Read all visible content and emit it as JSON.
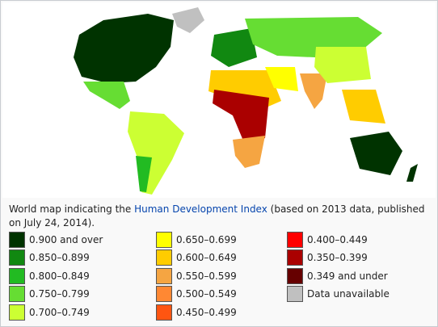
{
  "caption": {
    "before": "World map indicating the ",
    "link": "Human Development Index",
    "after": " (based on 2013 data, published on July 24, 2014)."
  },
  "legend": [
    {
      "label": "0.900 and over",
      "color": "#003300"
    },
    {
      "label": "0.850–0.899",
      "color": "#118811"
    },
    {
      "label": "0.800–0.849",
      "color": "#22bb22"
    },
    {
      "label": "0.750–0.799",
      "color": "#66dd33"
    },
    {
      "label": "0.700–0.749",
      "color": "#ccff33"
    },
    {
      "label": "0.650–0.699",
      "color": "#ffff00"
    },
    {
      "label": "0.600–0.649",
      "color": "#ffcc00"
    },
    {
      "label": "0.550–0.599",
      "color": "#f5a542"
    },
    {
      "label": "0.500–0.549",
      "color": "#ff8833"
    },
    {
      "label": "0.450–0.499",
      "color": "#ff5511"
    },
    {
      "label": "0.400–0.449",
      "color": "#ff0000"
    },
    {
      "label": "0.350–0.399",
      "color": "#aa0000"
    },
    {
      "label": "0.349 and under",
      "color": "#660000"
    },
    {
      "label": "Data unavailable",
      "color": "#c0c0c0"
    }
  ]
}
